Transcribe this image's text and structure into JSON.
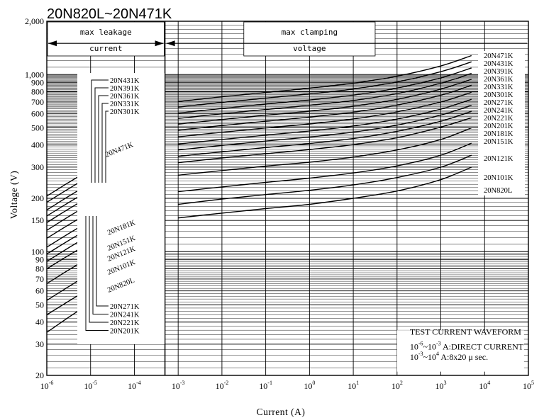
{
  "chart_data": {
    "type": "line",
    "title": "20N820L~20N471K",
    "xlabel": "Current (A)",
    "ylabel": "Voltage (V)",
    "x_scale": "log",
    "y_scale": "log",
    "xlim": [
      "1e-6",
      "1e5"
    ],
    "ylim": [
      20,
      2000
    ],
    "grid": true,
    "x_tick_labels": [
      {
        "v": -6,
        "base": "10",
        "exp": "-6"
      },
      {
        "v": -5,
        "base": "10",
        "exp": "-5"
      },
      {
        "v": -4,
        "base": "10",
        "exp": "-4"
      },
      {
        "v": -3,
        "base": "10",
        "exp": "-3"
      },
      {
        "v": -2,
        "base": "10",
        "exp": "-2"
      },
      {
        "v": -1,
        "base": "10",
        "exp": "-1"
      },
      {
        "v": 0,
        "base": "10",
        "exp": "0"
      },
      {
        "v": 1,
        "base": "10",
        "exp": "1"
      },
      {
        "v": 2,
        "base": "10",
        "exp": "2"
      },
      {
        "v": 3,
        "base": "10",
        "exp": "3"
      },
      {
        "v": 4,
        "base": "10",
        "exp": "4"
      },
      {
        "v": 5,
        "base": "10",
        "exp": "5"
      }
    ],
    "y_tick_labels": [
      {
        "v": 20,
        "t": "20"
      },
      {
        "v": 30,
        "t": "30"
      },
      {
        "v": 40,
        "t": "40"
      },
      {
        "v": 50,
        "t": "50"
      },
      {
        "v": 60,
        "t": "60"
      },
      {
        "v": 70,
        "t": "70"
      },
      {
        "v": 80,
        "t": "80"
      },
      {
        "v": 90,
        "t": "90"
      },
      {
        "v": 100,
        "t": "100"
      },
      {
        "v": 150,
        "t": "150"
      },
      {
        "v": 200,
        "t": "200"
      },
      {
        "v": 300,
        "t": "300"
      },
      {
        "v": 400,
        "t": "400"
      },
      {
        "v": 500,
        "t": "500"
      },
      {
        "v": 600,
        "t": "600"
      },
      {
        "v": 700,
        "t": "700"
      },
      {
        "v": 800,
        "t": "800"
      },
      {
        "v": 900,
        "t": "900"
      },
      {
        "v": 1000,
        "t": "1,000"
      },
      {
        "v": 2000,
        "t": "2,000"
      }
    ],
    "regions": {
      "leakage_label": [
        "max leakage",
        "current"
      ],
      "clamping_label": [
        "max clamping",
        "voltage"
      ],
      "boundary_current": "5e-4"
    },
    "test_waveform_note": {
      "heading": "TEST CURRENT WAVEFORM",
      "line1": {
        "a": "10",
        "ae": "-6",
        "b": "~10",
        "be": "-3",
        "text": " A:DIRECT CURRENT"
      },
      "line2": {
        "a": "10",
        "ae": "-3",
        "b": "~10",
        "be": "4",
        "text": " A:8x20  μ sec."
      }
    },
    "leakage_x": [
      -6,
      -5,
      -4,
      -3.3
    ],
    "clamp_x": [
      -3,
      -2,
      -1,
      0,
      1,
      2,
      3,
      3.7
    ],
    "series": [
      {
        "name": "20N820L",
        "leak": [
          35,
          51,
          66,
          76
        ],
        "clamp": [
          155,
          165,
          175,
          185,
          200,
          220,
          255,
          300
        ]
      },
      {
        "name": "20N101K",
        "leak": [
          44,
          62,
          80,
          90
        ],
        "clamp": [
          185,
          198,
          210,
          222,
          238,
          262,
          300,
          350
        ]
      },
      {
        "name": "20N121K",
        "leak": [
          53,
          75,
          96,
          107
        ],
        "clamp": [
          218,
          232,
          246,
          260,
          278,
          305,
          350,
          410
        ]
      },
      {
        "name": "20N151K",
        "leak": [
          66,
          93,
          119,
          132
        ],
        "clamp": [
          270,
          287,
          304,
          320,
          342,
          375,
          430,
          500
        ]
      },
      {
        "name": "20N181K",
        "leak": [
          80,
          112,
          142,
          157
        ],
        "clamp": [
          318,
          338,
          357,
          377,
          402,
          440,
          505,
          570
        ]
      },
      {
        "name": "20N201K",
        "leak": [
          88,
          124,
          158,
          175
        ],
        "clamp": [
          345,
          366,
          387,
          408,
          435,
          478,
          545,
          620
        ]
      },
      {
        "name": "20N221K",
        "leak": [
          97,
          136,
          174,
          193
        ],
        "clamp": [
          375,
          398,
          421,
          444,
          473,
          518,
          590,
          670
        ]
      },
      {
        "name": "20N241K",
        "leak": [
          106,
          149,
          190,
          210
        ],
        "clamp": [
          405,
          430,
          455,
          480,
          512,
          560,
          638,
          725
        ]
      },
      {
        "name": "20N271K",
        "leak": [
          119,
          167,
          213,
          237
        ],
        "clamp": [
          445,
          472,
          499,
          526,
          561,
          615,
          700,
          795
        ]
      },
      {
        "name": "20N301K",
        "leak": [
          132,
          186,
          237,
          263
        ],
        "clamp": [
          485,
          515,
          545,
          575,
          613,
          672,
          765,
          870
        ]
      },
      {
        "name": "20N331K",
        "leak": [
          146,
          205,
          261,
          290
        ],
        "clamp": [
          525,
          557,
          589,
          621,
          662,
          725,
          828,
          940
        ]
      },
      {
        "name": "20N361K",
        "leak": [
          159,
          223,
          284,
          316
        ],
        "clamp": [
          565,
          600,
          635,
          670,
          714,
          782,
          893,
          1015
        ]
      },
      {
        "name": "20N391K",
        "leak": [
          172,
          242,
          308,
          342
        ],
        "clamp": [
          605,
          643,
          681,
          719,
          766,
          839,
          958,
          1090
        ]
      },
      {
        "name": "20N431K",
        "leak": [
          190,
          267,
          340,
          377
        ],
        "clamp": [
          655,
          696,
          737,
          778,
          829,
          908,
          1038,
          1180
        ]
      },
      {
        "name": "20N471K",
        "leak": [
          206,
          290,
          370,
          410
        ],
        "clamp": [
          705,
          749,
          793,
          838,
          893,
          979,
          1118,
          1280
        ]
      }
    ],
    "inner_labels_top": [
      "20N431K",
      "20N391K",
      "20N361K",
      "20N331K",
      "20N301K"
    ],
    "inner_labels_bottom": [
      "20N271K",
      "20N241K",
      "20N221K",
      "20N201K"
    ],
    "diag_labels": [
      "20N471K",
      "20N181K",
      "20N151K",
      "20N121K",
      "20N101K",
      "20N820L"
    ],
    "right_labels": [
      "20N471K",
      "20N431K",
      "20N391K",
      "20N361K",
      "20N331K",
      "20N301K",
      "20N271K",
      "20N241K",
      "20N221K",
      "20N201K",
      "20N181K",
      "20N151K",
      "20N121K",
      "20N101K",
      "20N820L"
    ]
  }
}
